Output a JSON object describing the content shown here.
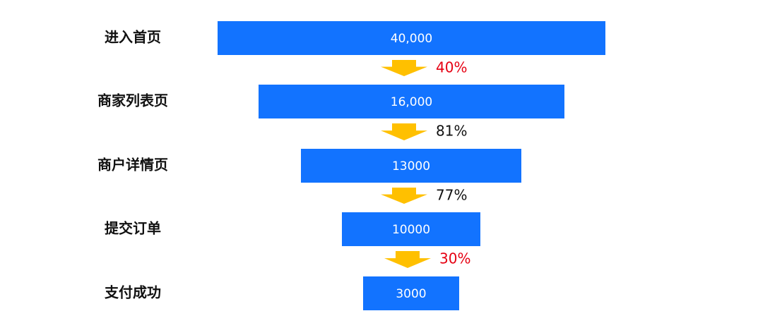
{
  "stages": [
    {
      "label": "进入首页",
      "value": "40,000"
    },
    {
      "label": "商家列表页",
      "value": "16,000"
    },
    {
      "label": "商户详情页",
      "value": "13000"
    },
    {
      "label": "提交订单",
      "value": "10000"
    },
    {
      "label": "支付成功",
      "value": "3000"
    }
  ],
  "conversions": [
    {
      "rate": "40%",
      "color": "#e60012"
    },
    {
      "rate": "81%",
      "color": "#111111"
    },
    {
      "rate": "77%",
      "color": "#111111"
    },
    {
      "rate": "30%",
      "color": "#e60012"
    }
  ],
  "bar_color": "#1273ff",
  "arrow_color": "#ffc000"
}
